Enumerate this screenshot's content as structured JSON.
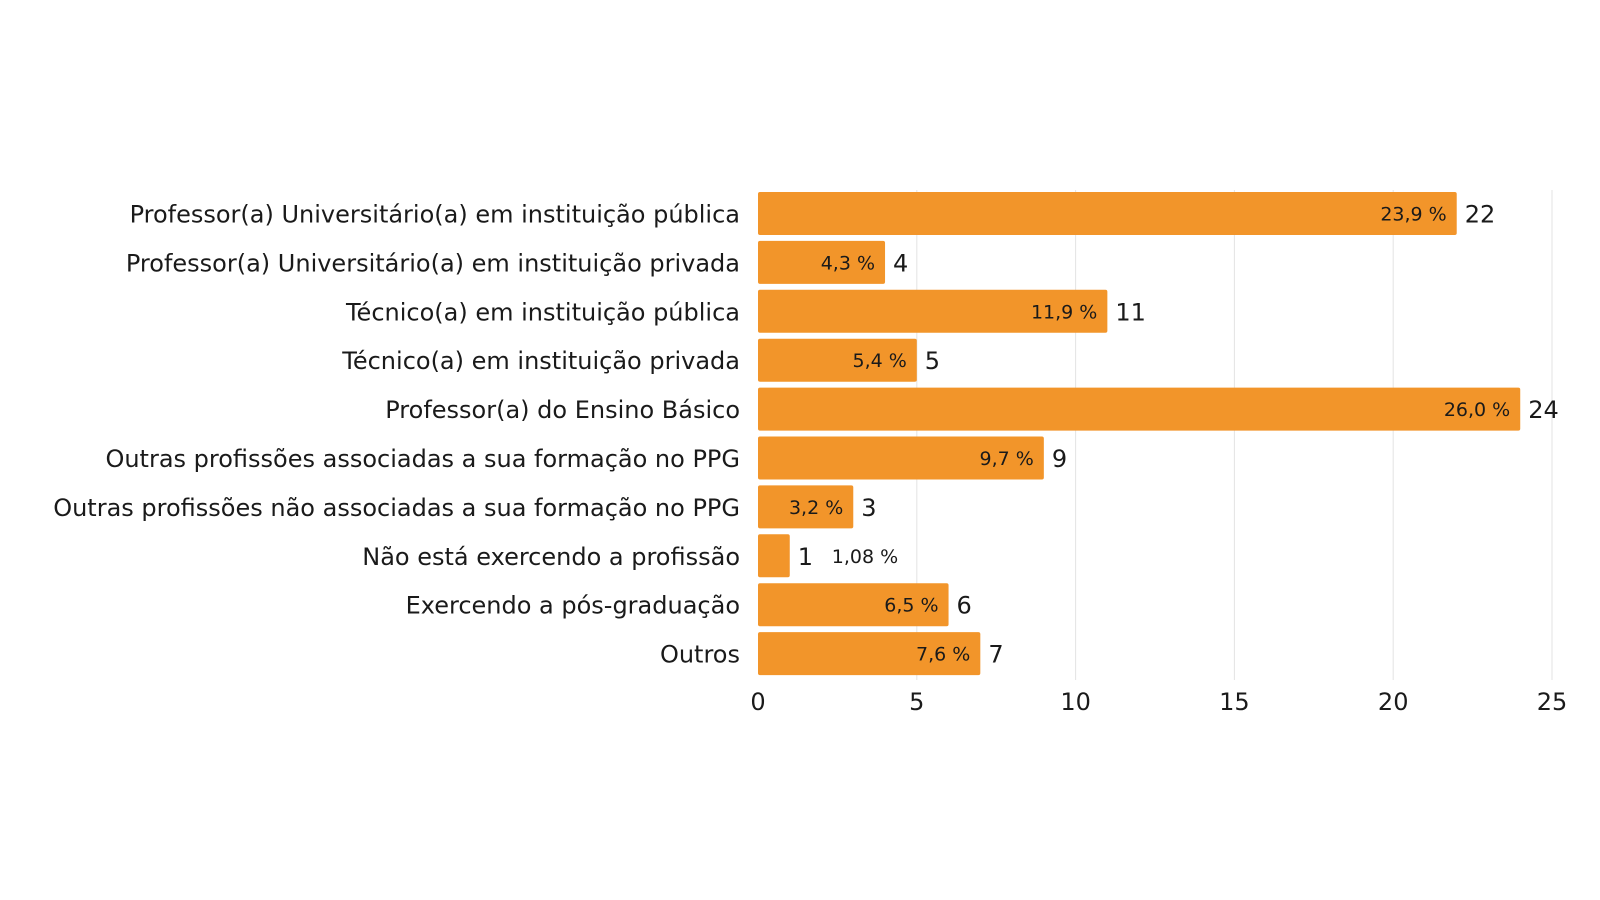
{
  "chart_data": {
    "type": "bar",
    "orientation": "horizontal",
    "categories": [
      "Professor(a) Universitário(a) em instituição pública",
      "Professor(a) Universitário(a) em instituição privada",
      "Técnico(a) em instituição pública",
      "Técnico(a) em instituição privada",
      "Professor(a) do Ensino Básico",
      "Outras profissões associadas a sua formação no PPG",
      "Outras profissões não associadas a sua formação no PPG",
      "Não está exercendo a profissão",
      "Exercendo a pós-graduação",
      "Outros"
    ],
    "values": [
      22,
      4,
      11,
      5,
      24,
      9,
      3,
      1,
      6,
      7
    ],
    "percent_labels": [
      "23,9 %",
      "4,3 %",
      "11,9 %",
      "5,4 %",
      "26,0 %",
      "9,7 %",
      "3,2 %",
      "1,08 %",
      "6,5 %",
      "7,6 %"
    ],
    "xlim": [
      0,
      25
    ],
    "xticks": [
      0,
      5,
      10,
      15,
      20,
      25
    ],
    "tick_labels": [
      "0",
      "5",
      "10",
      "15",
      "20",
      "25"
    ],
    "grid": true,
    "bar_color": "#f2952a"
  }
}
